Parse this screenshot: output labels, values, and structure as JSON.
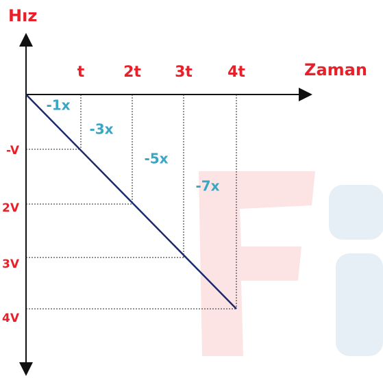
{
  "axes": {
    "y_label": "Hız",
    "x_label": "Zaman"
  },
  "x_ticks": [
    "t",
    "2t",
    "3t",
    "4t"
  ],
  "y_ticks": [
    "-V",
    "2V",
    "3V",
    "4V"
  ],
  "regions": [
    "-1x",
    "-3x",
    "-5x",
    "-7x"
  ]
}
